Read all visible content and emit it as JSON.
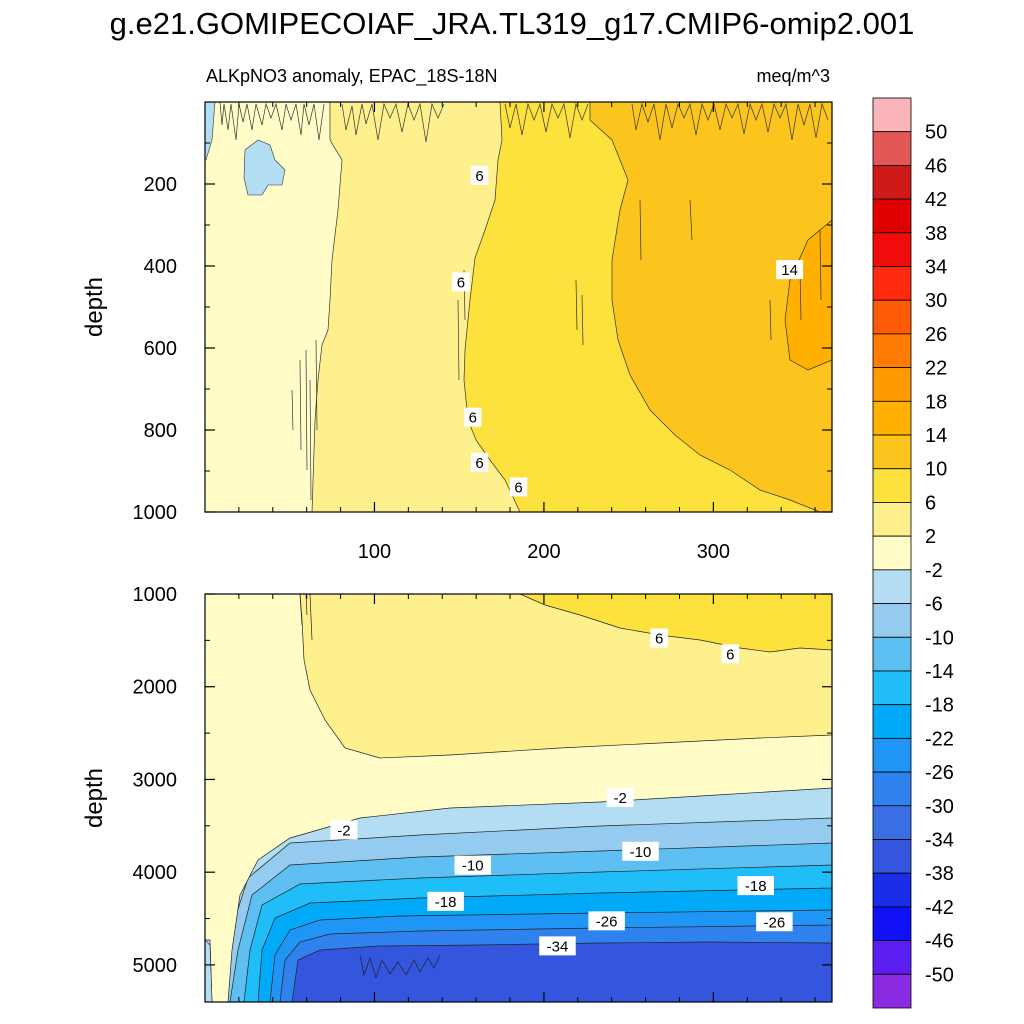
{
  "chart_data": {
    "type": "heatmap",
    "title": "g.e21.GOMIPECOIAF_JRA.TL319_g17.CMIP6-omip2.001",
    "subtitle_left": "ALKpNO3 anomaly, EPAC_18S-18N",
    "subtitle_right": "meq/m^3",
    "colorbar": {
      "labels": [
        "50",
        "46",
        "42",
        "38",
        "34",
        "30",
        "26",
        "22",
        "18",
        "14",
        "10",
        "6",
        "2",
        "-2",
        "-6",
        "-10",
        "-14",
        "-18",
        "-22",
        "-26",
        "-30",
        "-34",
        "-38",
        "-42",
        "-46",
        "-50"
      ],
      "colors": [
        "#fbb4b9",
        "#e35757",
        "#cf1a1a",
        "#e00000",
        "#f20d0d",
        "#ff2a10",
        "#ff5a05",
        "#ff7c00",
        "#ff9a00",
        "#ffb000",
        "#fcc51d",
        "#fde13c",
        "#fef08c",
        "#fffcc8",
        "#b3ddf2",
        "#94cbee",
        "#5ec0f2",
        "#1fbef9",
        "#00aaf8",
        "#1f96f5",
        "#2f82ee",
        "#3a6fe6",
        "#3455dd",
        "#1a2ee8",
        "#0f10f5",
        "#5a1ff0",
        "#8a2be2"
      ]
    },
    "panels": [
      {
        "name": "upper",
        "xlabel": "",
        "ylabel": "depth",
        "xlim": [
          0,
          370
        ],
        "ylim": [
          0,
          1000
        ],
        "x_ticks": [
          "100",
          "200",
          "300"
        ],
        "y_ticks": [
          "200",
          "400",
          "600",
          "800",
          "1000"
        ],
        "regions": [
          {
            "value_range": "-2 to 2",
            "x_from": 0,
            "x_to": 75
          },
          {
            "value_range": "2 to 6",
            "x_from": 75,
            "x_to": 175
          },
          {
            "value_range": "6 to 10",
            "x_from": 175,
            "x_to": 280
          },
          {
            "value_range": "10 to 14",
            "x_from": 245,
            "x_to": 370
          },
          {
            "value_range": "14 to 18",
            "x_from": 340,
            "x_to": 370
          }
        ],
        "contour_labels": [
          {
            "text": "6",
            "x": 162,
            "depth": 180
          },
          {
            "text": "6",
            "x": 151,
            "depth": 440
          },
          {
            "text": "6",
            "x": 158,
            "depth": 770
          },
          {
            "text": "6",
            "x": 162,
            "depth": 880
          },
          {
            "text": "6",
            "x": 185,
            "depth": 940
          },
          {
            "text": "14",
            "x": 345,
            "depth": 410
          }
        ]
      },
      {
        "name": "lower",
        "xlabel": "",
        "ylabel": "depth",
        "xlim": [
          0,
          370
        ],
        "ylim": [
          1000,
          5400
        ],
        "x_ticks": [],
        "y_ticks": [
          "1000",
          "2000",
          "3000",
          "4000",
          "5000"
        ],
        "regions": [
          {
            "value_range": "6 to 10",
            "depth_from": 1000,
            "depth_to": 1600
          },
          {
            "value_range": "2 to 6",
            "depth_from": 1000,
            "depth_to": 2800
          },
          {
            "value_range": "-2 to 2",
            "depth_from": 2600,
            "depth_to": 3500
          },
          {
            "value_range": "-6 to -2",
            "depth_from": 3100,
            "depth_to": 3800
          },
          {
            "value_range": "-10 to -6",
            "depth_from": 3400,
            "depth_to": 4100
          },
          {
            "value_range": "-34 to -38",
            "depth_from": 4800,
            "depth_to": 5400
          }
        ],
        "contour_labels": [
          {
            "text": "6",
            "x": 268,
            "depth": 1480
          },
          {
            "text": "6",
            "x": 310,
            "depth": 1650
          },
          {
            "text": "-2",
            "x": 245,
            "depth": 3200
          },
          {
            "text": "-2",
            "x": 82,
            "depth": 3550
          },
          {
            "text": "-10",
            "x": 257,
            "depth": 3780
          },
          {
            "text": "-10",
            "x": 158,
            "depth": 3930
          },
          {
            "text": "-18",
            "x": 325,
            "depth": 4150
          },
          {
            "text": "-18",
            "x": 142,
            "depth": 4320
          },
          {
            "text": "-26",
            "x": 237,
            "depth": 4530
          },
          {
            "text": "-26",
            "x": 336,
            "depth": 4540
          },
          {
            "text": "-34",
            "x": 208,
            "depth": 4800
          }
        ]
      }
    ]
  }
}
